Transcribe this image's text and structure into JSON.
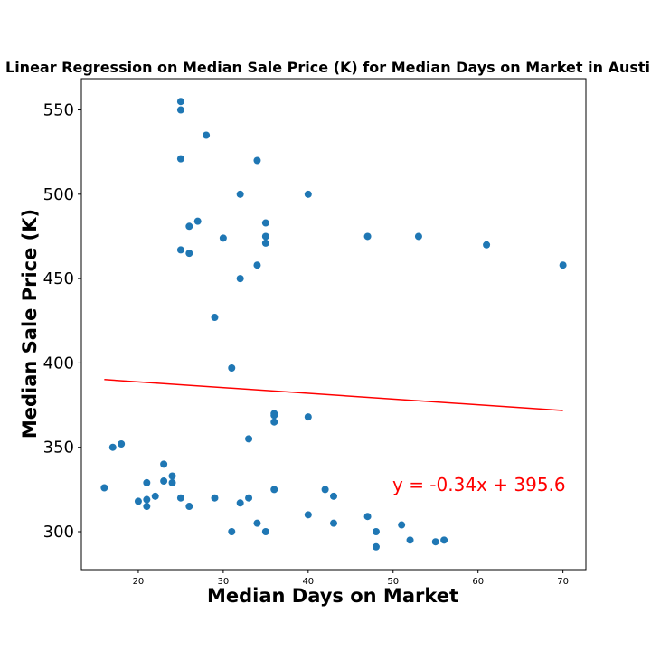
{
  "chart_data": {
    "type": "scatter",
    "title": "Linear Regression on Median Sale Price (K) for Median Days on Market in Austi",
    "xlabel": "Median Days on Market",
    "ylabel": "Median Sale Price (K)",
    "xlim": [
      13.3,
      72.7
    ],
    "ylim": [
      277.5,
      568.5
    ],
    "x_ticks": [
      20,
      30,
      40,
      50,
      60,
      70
    ],
    "y_ticks": [
      300,
      350,
      400,
      450,
      500,
      550
    ],
    "grid": false,
    "point_color": "#1f77b4",
    "line_color": "#ff0000",
    "equation": "y = -0.34x + 395.6",
    "regression": {
      "slope": -0.34,
      "intercept": 395.6,
      "x_range": [
        16,
        70
      ]
    },
    "points": [
      {
        "x": 25,
        "y": 555
      },
      {
        "x": 25,
        "y": 550
      },
      {
        "x": 28,
        "y": 535
      },
      {
        "x": 25,
        "y": 521
      },
      {
        "x": 34,
        "y": 520
      },
      {
        "x": 32,
        "y": 500
      },
      {
        "x": 40,
        "y": 500
      },
      {
        "x": 27,
        "y": 484
      },
      {
        "x": 35,
        "y": 483
      },
      {
        "x": 26,
        "y": 481
      },
      {
        "x": 35,
        "y": 475
      },
      {
        "x": 47,
        "y": 475
      },
      {
        "x": 53,
        "y": 475
      },
      {
        "x": 30,
        "y": 474
      },
      {
        "x": 35,
        "y": 471
      },
      {
        "x": 61,
        "y": 470
      },
      {
        "x": 25,
        "y": 467
      },
      {
        "x": 26,
        "y": 465
      },
      {
        "x": 34,
        "y": 458
      },
      {
        "x": 70,
        "y": 458
      },
      {
        "x": 32,
        "y": 450
      },
      {
        "x": 29,
        "y": 427
      },
      {
        "x": 31,
        "y": 397
      },
      {
        "x": 36,
        "y": 370
      },
      {
        "x": 36,
        "y": 369
      },
      {
        "x": 40,
        "y": 368
      },
      {
        "x": 36,
        "y": 365
      },
      {
        "x": 33,
        "y": 355
      },
      {
        "x": 18,
        "y": 352
      },
      {
        "x": 17,
        "y": 350
      },
      {
        "x": 23,
        "y": 340
      },
      {
        "x": 24,
        "y": 333
      },
      {
        "x": 23,
        "y": 330
      },
      {
        "x": 21,
        "y": 329
      },
      {
        "x": 24,
        "y": 329
      },
      {
        "x": 16,
        "y": 326
      },
      {
        "x": 36,
        "y": 325
      },
      {
        "x": 42,
        "y": 325
      },
      {
        "x": 22,
        "y": 321
      },
      {
        "x": 43,
        "y": 321
      },
      {
        "x": 25,
        "y": 320
      },
      {
        "x": 29,
        "y": 320
      },
      {
        "x": 33,
        "y": 320
      },
      {
        "x": 21,
        "y": 319
      },
      {
        "x": 20,
        "y": 318
      },
      {
        "x": 32,
        "y": 317
      },
      {
        "x": 21,
        "y": 315
      },
      {
        "x": 26,
        "y": 315
      },
      {
        "x": 40,
        "y": 310
      },
      {
        "x": 47,
        "y": 309
      },
      {
        "x": 34,
        "y": 305
      },
      {
        "x": 43,
        "y": 305
      },
      {
        "x": 51,
        "y": 304
      },
      {
        "x": 31,
        "y": 300
      },
      {
        "x": 35,
        "y": 300
      },
      {
        "x": 48,
        "y": 300
      },
      {
        "x": 52,
        "y": 295
      },
      {
        "x": 56,
        "y": 295
      },
      {
        "x": 55,
        "y": 294
      },
      {
        "x": 48,
        "y": 291
      }
    ]
  }
}
